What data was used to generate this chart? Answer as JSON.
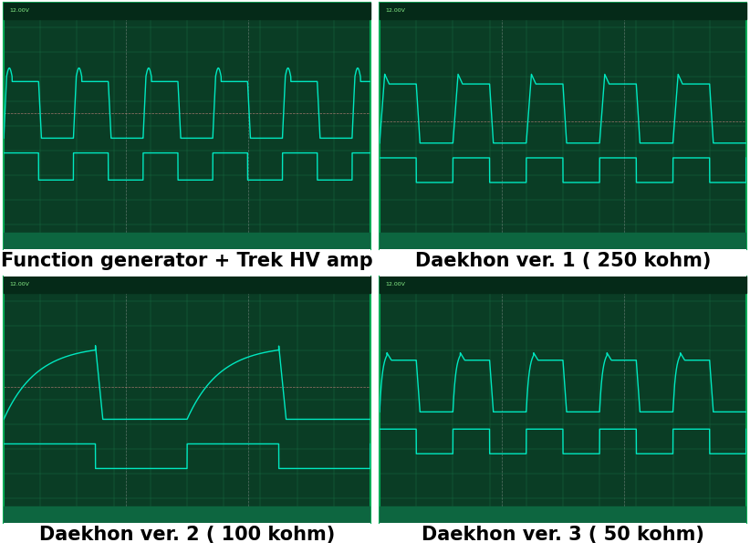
{
  "captions": [
    "Function generator + Trek HV amp",
    "Daekhon ver. 1 ( 250 kohm)",
    "Daekhon ver. 2 ( 100 kohm)",
    "Daekhon ver. 3 ( 50 kohm)"
  ],
  "caption_fontsize": 15,
  "screen_bg": "#0a3d25",
  "grid_color": "#1a7a4a",
  "signal_color": "#00e8c0",
  "dashed_color": "#cc6666",
  "header_bg": "#052a18",
  "footer_bg": "#0d6640",
  "outer_bg": "#ffffff",
  "border_color": "#004422",
  "header_text_color": "#88ee88",
  "scope_border": "#00aa55"
}
